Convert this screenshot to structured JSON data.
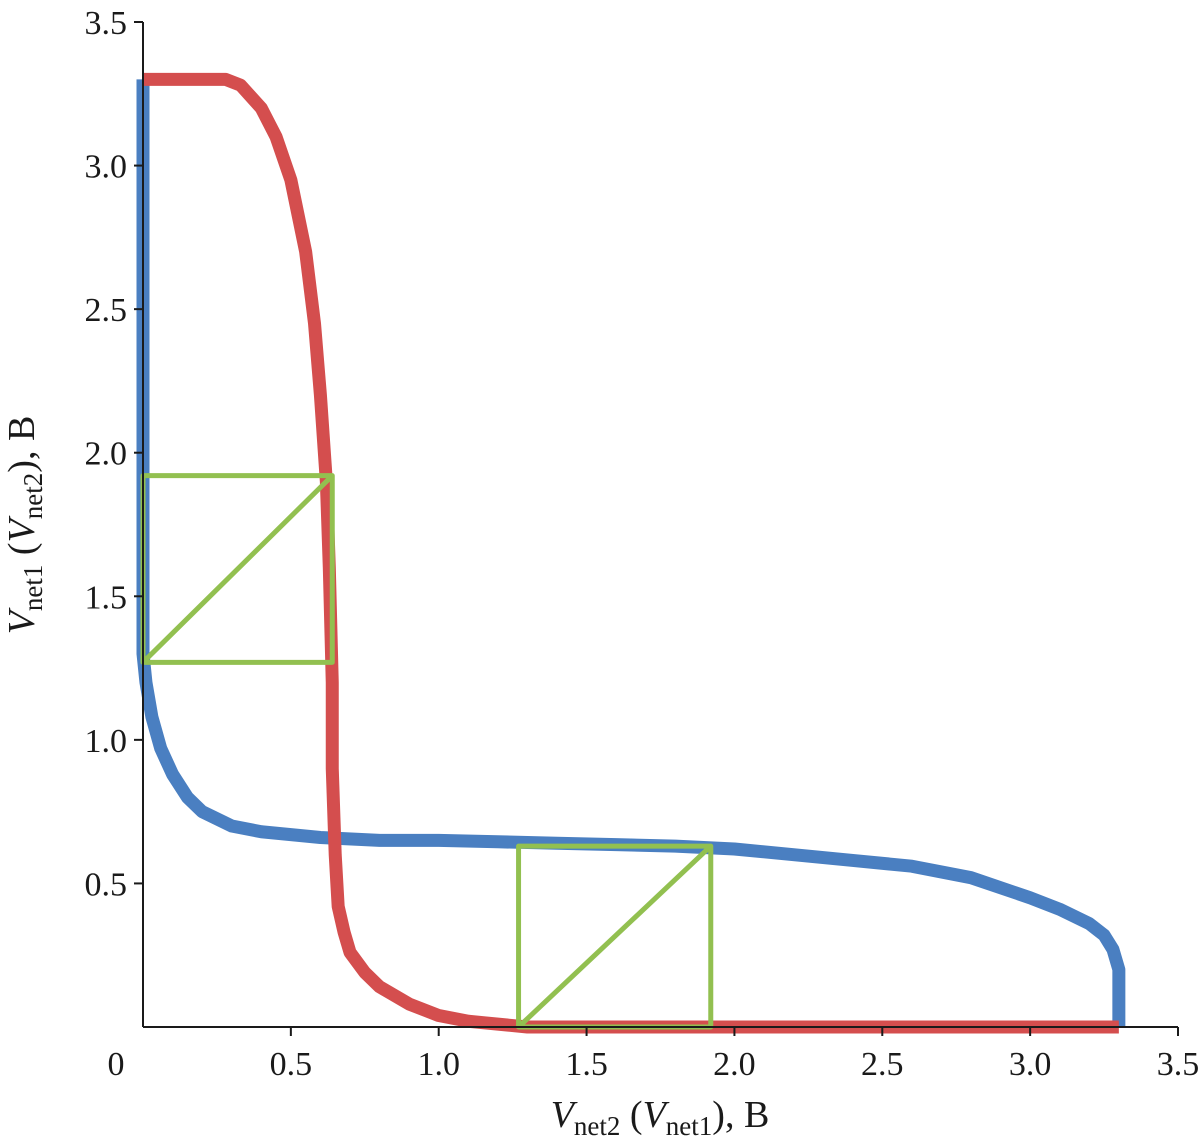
{
  "chart_data": {
    "type": "line",
    "xlabel": {
      "v1": "V",
      "sub1": "net2",
      "mid": " (",
      "v2": "V",
      "sub2": "net1",
      "end": "), B"
    },
    "ylabel": {
      "v1": "V",
      "sub1": "net1",
      "mid": " (",
      "v2": "V",
      "sub2": "net2",
      "end": "), B"
    },
    "xlim": [
      0,
      3.5
    ],
    "ylim": [
      0,
      3.5
    ],
    "x_ticks": [
      0,
      0.5,
      1.0,
      1.5,
      2.0,
      2.5,
      3.0,
      3.5
    ],
    "x_tick_labels": [
      "0",
      "0.5",
      "1.0",
      "1.5",
      "2.0",
      "2.5",
      "3.0",
      "3.5"
    ],
    "y_ticks": [
      0.5,
      1.0,
      1.5,
      2.0,
      2.5,
      3.0,
      3.5
    ],
    "y_tick_labels": [
      "0.5",
      "1.0",
      "1.5",
      "2.0",
      "2.5",
      "3.0",
      "3.5"
    ],
    "grid": false,
    "series": [
      {
        "color": "#4a7fc1",
        "x": [
          0.0,
          0.0,
          0.0,
          0.0,
          0.0,
          0.01,
          0.03,
          0.06,
          0.1,
          0.15,
          0.2,
          0.3,
          0.4,
          0.5,
          0.6,
          0.8,
          1.0,
          1.2,
          1.4,
          1.6,
          1.8,
          2.0,
          2.2,
          2.4,
          2.6,
          2.8,
          3.0,
          3.1,
          3.2,
          3.25,
          3.28,
          3.3,
          3.3
        ],
        "y": [
          3.3,
          2.5,
          2.0,
          1.5,
          1.3,
          1.2,
          1.08,
          0.97,
          0.88,
          0.8,
          0.75,
          0.7,
          0.68,
          0.67,
          0.66,
          0.65,
          0.65,
          0.645,
          0.64,
          0.635,
          0.63,
          0.62,
          0.6,
          0.58,
          0.56,
          0.52,
          0.45,
          0.41,
          0.36,
          0.32,
          0.27,
          0.2,
          0.0
        ]
      },
      {
        "color": "#d44e4e",
        "x": [
          0.0,
          0.1,
          0.2,
          0.28,
          0.33,
          0.4,
          0.45,
          0.5,
          0.55,
          0.58,
          0.6,
          0.62,
          0.63,
          0.64,
          0.64,
          0.65,
          0.66,
          0.68,
          0.7,
          0.75,
          0.8,
          0.9,
          1.0,
          1.1,
          1.2,
          1.3,
          1.5,
          2.0,
          2.5,
          3.0,
          3.3
        ],
        "y": [
          3.3,
          3.3,
          3.3,
          3.3,
          3.28,
          3.2,
          3.1,
          2.95,
          2.7,
          2.45,
          2.2,
          1.9,
          1.6,
          1.2,
          0.9,
          0.6,
          0.42,
          0.33,
          0.26,
          0.19,
          0.14,
          0.08,
          0.04,
          0.02,
          0.01,
          0.0,
          0.0,
          0.0,
          0.0,
          0.0,
          0.0
        ]
      },
      {
        "color": "#92c050",
        "x": [
          0.0,
          0.64,
          0.64,
          0.0,
          0.0,
          0.64
        ],
        "y": [
          1.27,
          1.27,
          1.92,
          1.92,
          1.27,
          1.92
        ]
      },
      {
        "color": "#92c050",
        "x": [
          1.27,
          1.92,
          1.92,
          1.27,
          1.27,
          1.92
        ],
        "y": [
          0.0,
          0.0,
          0.63,
          0.63,
          0.0,
          0.63
        ]
      }
    ]
  }
}
